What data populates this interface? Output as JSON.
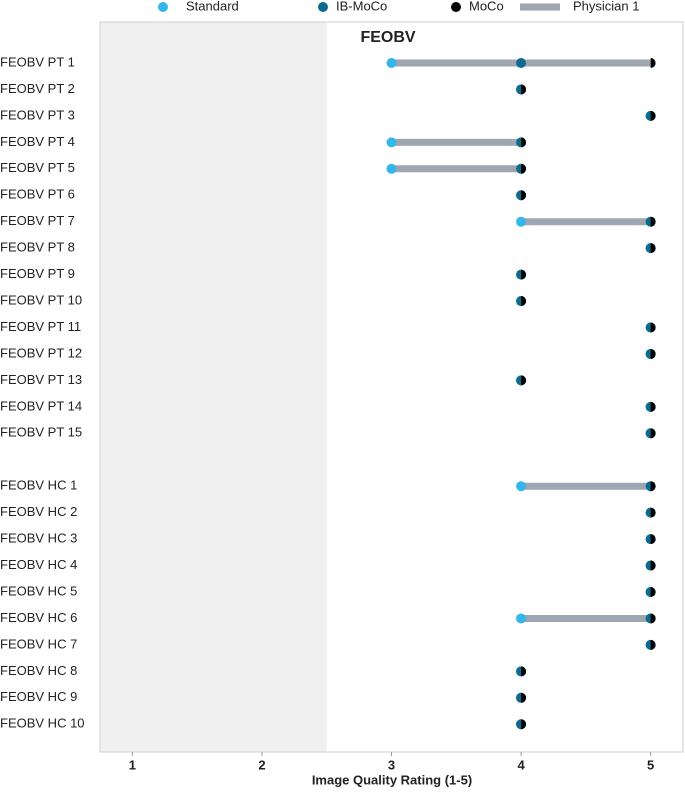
{
  "chart_data": {
    "type": "dumbbell",
    "title": "FEOBV",
    "x_label": "Image Quality Rating (1-5)",
    "categories": [
      "FEOBV PT 1",
      "FEOBV PT 2",
      "FEOBV PT 3",
      "FEOBV PT 4",
      "FEOBV PT 5",
      "FEOBV PT 6",
      "FEOBV PT 7",
      "FEOBV PT 8",
      "FEOBV PT 9",
      "FEOBV PT 10",
      "FEOBV PT 11",
      "FEOBV PT 12",
      "FEOBV PT 13",
      "FEOBV PT 14",
      "FEOBV PT 15",
      null,
      "FEOBV HC 1",
      "FEOBV HC 2",
      "FEOBV HC 3",
      "FEOBV HC 4",
      "FEOBV HC 5",
      "FEOBV HC 6",
      "FEOBV HC 7",
      "FEOBV HC 8",
      "FEOBV HC 9",
      "FEOBV HC 10"
    ],
    "series": [
      {
        "name": "Standard",
        "color": "#35b6ea",
        "values": [
          3,
          4,
          5,
          3,
          3,
          4,
          4,
          5,
          4,
          4,
          5,
          5,
          4,
          5,
          5,
          null,
          4,
          5,
          5,
          5,
          5,
          4,
          5,
          4,
          4,
          4
        ]
      },
      {
        "name": "IB-MoCo",
        "color": "#0d6b8f",
        "values": [
          4,
          4,
          5,
          4,
          4,
          4,
          5,
          5,
          4,
          4,
          5,
          5,
          4,
          5,
          5,
          null,
          5,
          5,
          5,
          5,
          5,
          5,
          5,
          4,
          4,
          4
        ]
      },
      {
        "name": "MoCo",
        "color": "#000000",
        "values": [
          5,
          4,
          5,
          4,
          4,
          4,
          5,
          5,
          4,
          4,
          5,
          5,
          4,
          5,
          5,
          null,
          5,
          5,
          5,
          5,
          5,
          5,
          5,
          4,
          4,
          4
        ]
      }
    ],
    "range_line": {
      "name": "Physician 1",
      "color": "#9ea6b1"
    },
    "shaded_region": {
      "range": [
        0.75,
        2.5
      ],
      "color": "#f0f0f0"
    },
    "xlim": [
      0.75,
      5.25
    ],
    "xticks": [
      1,
      2,
      3,
      4,
      5
    ]
  }
}
